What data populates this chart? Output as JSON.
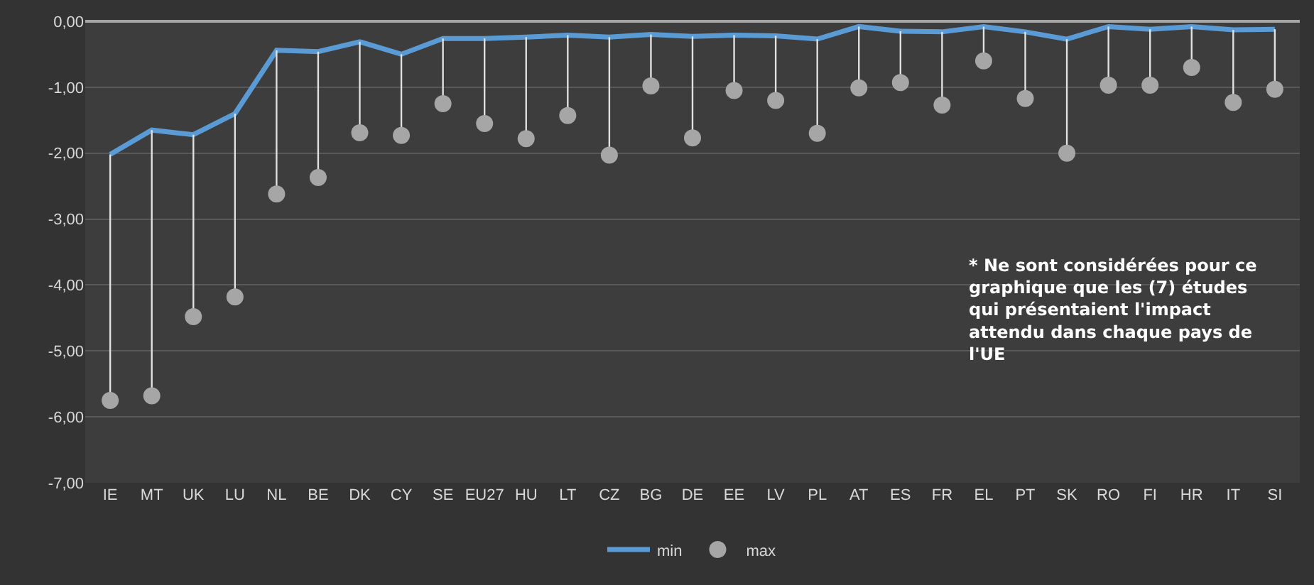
{
  "chart_data": {
    "type": "line",
    "categories": [
      "IE",
      "MT",
      "UK",
      "LU",
      "NL",
      "BE",
      "DK",
      "CY",
      "SE",
      "EU27",
      "HU",
      "LT",
      "CZ",
      "BG",
      "DE",
      "EE",
      "LV",
      "PL",
      "AT",
      "ES",
      "FR",
      "EL",
      "PT",
      "SK",
      "RO",
      "FI",
      "HR",
      "IT",
      "SI"
    ],
    "series": [
      {
        "name": "min",
        "color": "#5b9bd5",
        "values": [
          -2.02,
          -1.65,
          -1.72,
          -1.4,
          -0.44,
          -0.46,
          -0.31,
          -0.5,
          -0.26,
          -0.26,
          -0.24,
          -0.21,
          -0.24,
          -0.2,
          -0.23,
          -0.21,
          -0.22,
          -0.27,
          -0.08,
          -0.15,
          -0.16,
          -0.08,
          -0.16,
          -0.27,
          -0.08,
          -0.12,
          -0.08,
          -0.13,
          -0.12
        ]
      },
      {
        "name": "max",
        "type": "scatter",
        "marker": "circle",
        "color": "#a6a6a6",
        "values": [
          -5.75,
          -5.68,
          -4.48,
          -4.18,
          -2.62,
          -2.37,
          -1.69,
          -1.73,
          -1.25,
          -1.55,
          -1.78,
          -1.43,
          -2.03,
          -0.98,
          -1.77,
          -1.05,
          -1.2,
          -1.7,
          -1.01,
          -0.93,
          -1.27,
          -0.6,
          -1.17,
          -2.0,
          -0.97,
          -0.97,
          -0.7,
          -1.23,
          -1.03
        ],
        "errors": [
          [
            -5.75,
            -2.02
          ],
          [
            -5.68,
            -1.65
          ],
          [
            -4.48,
            -1.72
          ],
          [
            -4.18,
            -1.4
          ],
          [
            -2.62,
            -0.44
          ],
          [
            -2.37,
            -0.46
          ],
          [
            -1.69,
            -0.31
          ],
          [
            -1.73,
            -0.5
          ],
          [
            -1.25,
            -0.26
          ],
          [
            -1.55,
            -0.26
          ],
          [
            -1.78,
            -0.24
          ],
          [
            -1.43,
            -0.21
          ],
          [
            -2.03,
            -0.24
          ],
          [
            -0.98,
            -0.2
          ],
          [
            -1.77,
            -0.23
          ],
          [
            -1.05,
            -0.21
          ],
          [
            -1.2,
            -0.22
          ],
          [
            -1.7,
            -0.27
          ],
          [
            -1.01,
            -0.08
          ],
          [
            -0.93,
            -0.15
          ],
          [
            -1.27,
            -0.16
          ],
          [
            -0.6,
            -0.08
          ],
          [
            -1.17,
            -0.16
          ],
          [
            -2.0,
            -0.27
          ],
          [
            -0.97,
            -0.08
          ],
          [
            -0.97,
            -0.12
          ],
          [
            -0.7,
            -0.08
          ],
          [
            -1.23,
            -0.13
          ],
          [
            -1.03,
            -0.12
          ]
        ]
      }
    ],
    "ylim": [
      -7,
      0
    ],
    "yticks": [
      {
        "value": 0,
        "label": "0,00"
      },
      {
        "value": -1,
        "label": "-1,00"
      },
      {
        "value": -2,
        "label": "-2,00"
      },
      {
        "value": -3,
        "label": "-3,00"
      },
      {
        "value": -4,
        "label": "-4,00"
      },
      {
        "value": -5,
        "label": "-5,00"
      },
      {
        "value": -6,
        "label": "-6,00"
      },
      {
        "value": -7,
        "label": "-7,00"
      }
    ],
    "grid": "y",
    "legend": "bottom",
    "annotations": [
      "* Ne sont considérées pour ce graphique que les (7) études qui présentaient l'impact attendu dans chaque pays de l'UE"
    ]
  }
}
